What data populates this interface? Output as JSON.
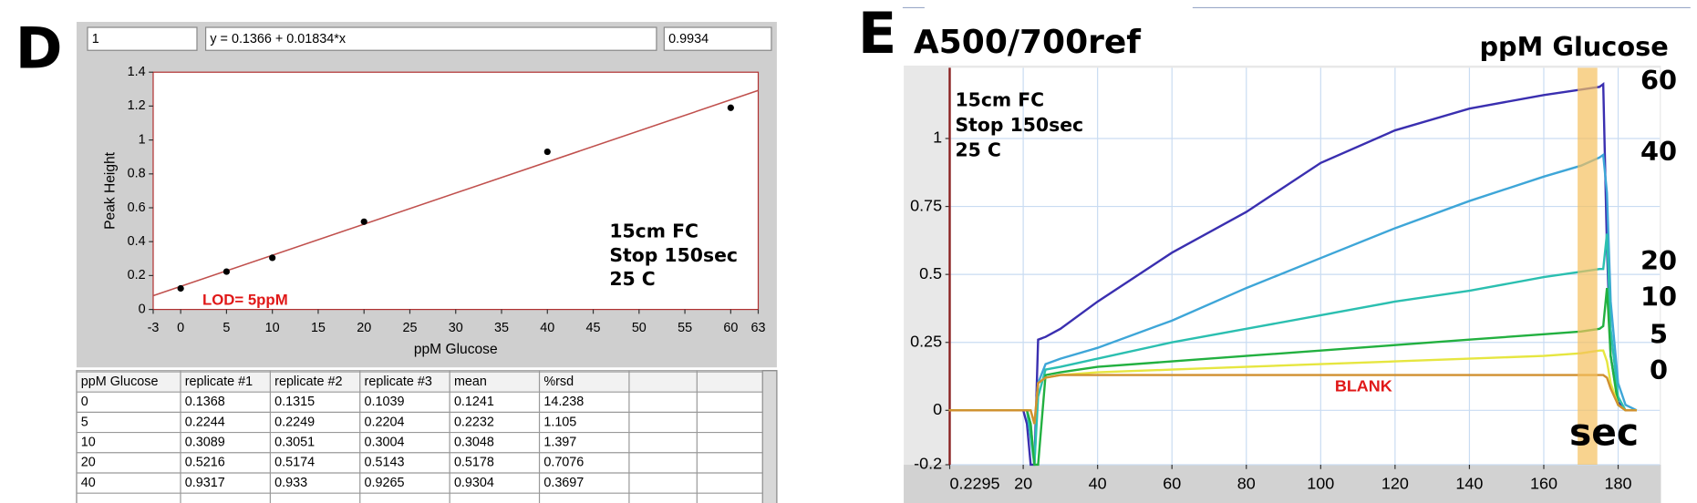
{
  "panel_labels": [
    "D",
    "E"
  ],
  "fields": [
    "1",
    "y = 0.1366 + 0.01834*x",
    "0.9934"
  ],
  "table": {
    "header": [
      "ppM Glucose",
      "replicate #1",
      "replicate #2",
      "replicate #3",
      "mean",
      "%rsd"
    ],
    "rows": [
      [
        0,
        0.1368,
        0.1315,
        0.1039,
        0.1241,
        14.238
      ],
      [
        5,
        0.2244,
        0.2249,
        0.2204,
        0.2232,
        1.105
      ],
      [
        10,
        0.3089,
        0.3051,
        0.3004,
        0.3048,
        1.397
      ],
      [
        20,
        0.5216,
        0.5174,
        0.5143,
        0.5178,
        0.7076
      ],
      [
        40,
        0.9317,
        0.933,
        0.9265,
        0.9304,
        0.3697
      ]
    ]
  },
  "chart_data": [
    {
      "type": "scatter",
      "x_label": "ppM Glucose",
      "y_label": "Peak Height",
      "x": [
        0,
        5,
        10,
        20,
        40,
        60
      ],
      "series": [
        {
          "values": [
            0.1241,
            0.2232,
            0.3048,
            0.5178,
            0.9304,
            1.19
          ],
          "color": "#000000"
        }
      ],
      "fit": {
        "x": [
          -3,
          63
        ],
        "values": [
          0.0816,
          1.292
        ],
        "color": "#c0504d"
      },
      "xlim": [
        -3,
        63
      ],
      "xticks": [
        -3,
        0,
        5,
        10,
        15,
        20,
        25,
        30,
        35,
        40,
        45,
        50,
        55,
        60,
        63
      ],
      "ylim": [
        0,
        1.4
      ],
      "yticks": [
        0,
        0.2,
        0.4,
        0.6,
        0.8,
        1,
        1.2,
        1.4
      ],
      "grid": false,
      "annotations": [
        "LOD= 5ppM"
      ],
      "notes": [
        "15cm FC",
        "Stop 150sec",
        "25 C"
      ]
    },
    {
      "type": "line",
      "title": "A500/700ref",
      "legend_title": "ppM Glucose",
      "x_label": "sec",
      "x": [
        0,
        18,
        20,
        21,
        22,
        23,
        24,
        26,
        30,
        40,
        60,
        80,
        100,
        120,
        140,
        160,
        170,
        175,
        176,
        177,
        178,
        180,
        182,
        185
      ],
      "series": [
        {
          "name": "60",
          "color": "#3a2fb0",
          "values": [
            0,
            0,
            0,
            -0.05,
            -0.2,
            -0.2,
            0.26,
            0.27,
            0.3,
            0.4,
            0.58,
            0.73,
            0.91,
            1.03,
            1.11,
            1.16,
            1.18,
            1.19,
            1.2,
            0.6,
            0.2,
            0.03,
            0,
            0
          ]
        },
        {
          "name": "40",
          "color": "#3ea6d8",
          "values": [
            0,
            0,
            0,
            0,
            -0.05,
            -0.2,
            0.1,
            0.17,
            0.19,
            0.23,
            0.33,
            0.45,
            0.56,
            0.67,
            0.77,
            0.86,
            0.9,
            0.93,
            0.94,
            0.8,
            0.4,
            0.1,
            0.02,
            0
          ]
        },
        {
          "name": "20",
          "color": "#2bbfb0",
          "values": [
            0,
            0,
            0,
            0,
            -0.1,
            -0.2,
            0.05,
            0.15,
            0.16,
            0.19,
            0.25,
            0.3,
            0.35,
            0.4,
            0.44,
            0.49,
            0.51,
            0.52,
            0.52,
            0.65,
            0.3,
            0.05,
            0,
            0
          ]
        },
        {
          "name": "10",
          "color": "#22b040",
          "values": [
            0,
            0,
            0,
            0,
            -0.05,
            -0.2,
            -0.2,
            0.13,
            0.14,
            0.16,
            0.18,
            0.2,
            0.22,
            0.24,
            0.26,
            0.28,
            0.29,
            0.3,
            0.31,
            0.45,
            0.2,
            0.02,
            0,
            0
          ]
        },
        {
          "name": "5",
          "color": "#e6e640",
          "values": [
            0,
            0,
            0,
            0,
            0,
            -0.05,
            0.1,
            0.12,
            0.13,
            0.14,
            0.15,
            0.16,
            0.17,
            0.18,
            0.19,
            0.2,
            0.21,
            0.22,
            0.22,
            0.18,
            0.1,
            0.02,
            0,
            0
          ]
        },
        {
          "name": "0",
          "color": "#d09030",
          "values": [
            0,
            0,
            0,
            0,
            0,
            -0.05,
            0.1,
            0.12,
            0.13,
            0.13,
            0.13,
            0.13,
            0.13,
            0.13,
            0.13,
            0.13,
            0.13,
            0.13,
            0.13,
            0.12,
            0.08,
            0.02,
            0,
            0
          ]
        }
      ],
      "highlight": {
        "x": [
          169.1,
          174.4
        ],
        "color": "#f5c060"
      },
      "xlim": [
        0.2295,
        191.2
      ],
      "xticks": [
        0.2295,
        20,
        40,
        60,
        80,
        100,
        120,
        140,
        160,
        180
      ],
      "ylim": [
        -0.2,
        1.26
      ],
      "yticks": [
        -0.2,
        0,
        0.25,
        0.5,
        0.75,
        1
      ],
      "grid": true,
      "annotations": [
        "BLANK"
      ],
      "notes": [
        "15cm FC",
        "Stop 150sec",
        "25 C"
      ]
    }
  ]
}
